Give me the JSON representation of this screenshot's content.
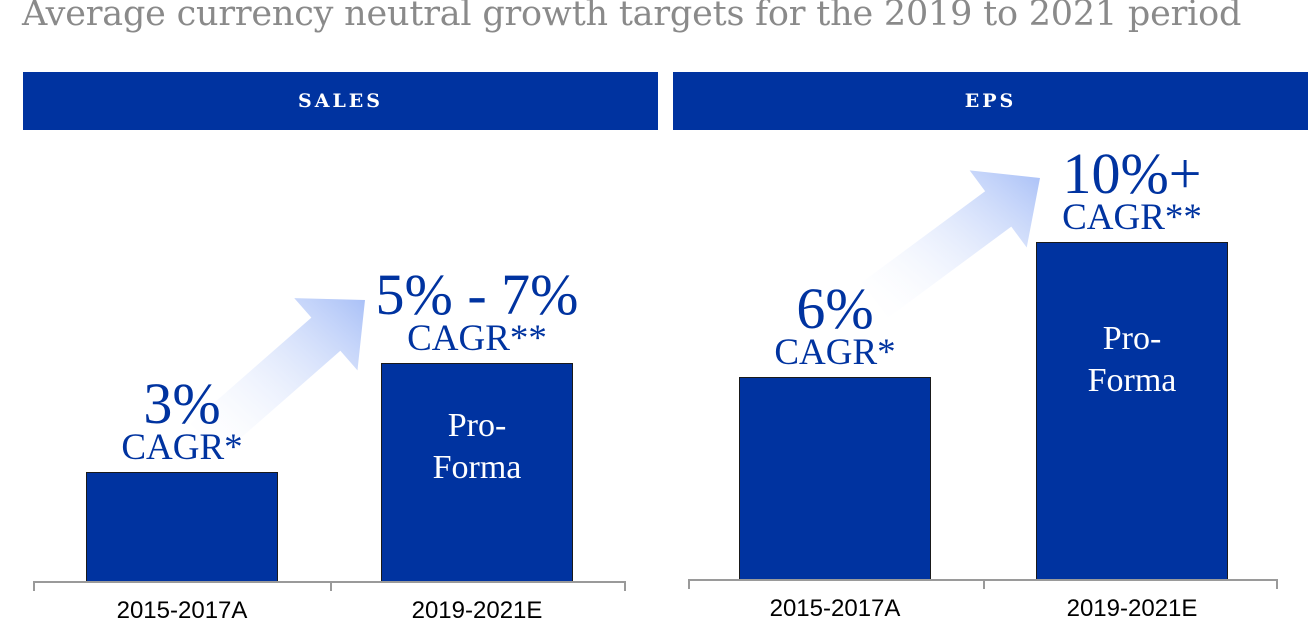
{
  "subtitle": "Average currency neutral growth targets for the 2019 to 2021 period",
  "colors": {
    "bar": "#0033a0",
    "arrow": "#a9c0f7",
    "subtitle": "#8a8a8a"
  },
  "chart_data": [
    {
      "type": "bar",
      "title": "SALES",
      "categories": [
        "2015-2017A",
        "2019-2021E"
      ],
      "values": [
        3,
        6
      ],
      "value_labels": [
        {
          "main": "3%",
          "sub": "CAGR*"
        },
        {
          "main": "5% - 7%",
          "sub": "CAGR**"
        }
      ],
      "bar_text": [
        "",
        "Pro-\nForma"
      ],
      "growth_arrow": true
    },
    {
      "type": "bar",
      "title": "EPS",
      "categories": [
        "2015-2017A",
        "2019-2021E"
      ],
      "values": [
        6,
        10
      ],
      "value_labels": [
        {
          "main": "6%",
          "sub": "CAGR*"
        },
        {
          "main": "10%+",
          "sub": "CAGR**"
        }
      ],
      "bar_text": [
        "",
        "Pro-\nForma"
      ],
      "growth_arrow": true
    }
  ]
}
